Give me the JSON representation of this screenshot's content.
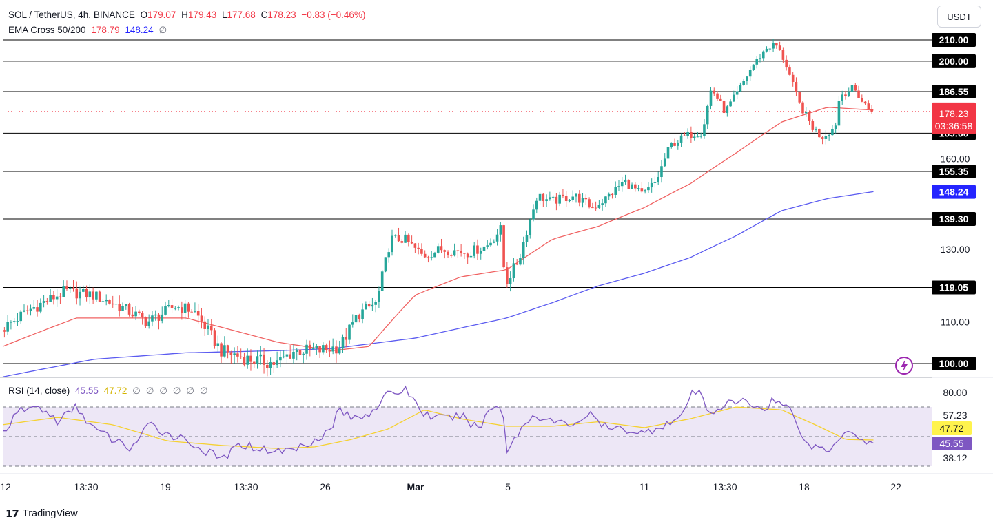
{
  "header": {
    "symbol": "SOL / TetherUS, 4h, BINANCE",
    "ohlc": {
      "o_label": "O",
      "o": "179.07",
      "h_label": "H",
      "h": "179.43",
      "l_label": "L",
      "l": "177.68",
      "c_label": "C",
      "c": "178.23",
      "change": "−0.83 (−0.46%)"
    },
    "ema": {
      "label": "EMA Cross 50/200",
      "ema50": "178.79",
      "ema200": "148.24",
      "extra": "∅"
    },
    "currency_button": "USDT"
  },
  "rsi_header": {
    "label": "RSI (14, close)",
    "rsi": "45.55",
    "ma": "47.72",
    "extras": [
      "∅",
      "∅",
      "∅",
      "∅",
      "∅",
      "∅"
    ]
  },
  "branding": {
    "logo_text": "TradingView"
  },
  "colors": {
    "up": "#26a69a",
    "down": "#ef5350",
    "ema50": "#f06262",
    "ema200": "#5b5bf0",
    "rsi": "#7e57c2",
    "rsi_ma": "#f5d131",
    "level_line": "#000000",
    "price_badge": "#f23645",
    "ema200_badge": "#2424ff",
    "rsi_badge": "#7e57c2",
    "rsi_ma_badge": "#fff34d"
  },
  "chart_data": {
    "type": "candlestick",
    "symbol": "SOL / TetherUS",
    "interval": "4h",
    "exchange": "BINANCE",
    "price_axis_ticks": [
      200.0,
      160.0,
      130.0,
      110.0
    ],
    "horizontal_levels": [
      210.0,
      200.0,
      186.55,
      169.6,
      155.35,
      139.3,
      119.05,
      100.0
    ],
    "last_price": 178.23,
    "countdown": "03:36:58",
    "ema50_value": 178.79,
    "ema200_value": 148.24,
    "x_labels": [
      "12",
      "13:30",
      "19",
      "13:30",
      "26",
      "Mar",
      "5",
      "11",
      "13:30",
      "18",
      "22"
    ],
    "price_path": [
      [
        0,
        108
      ],
      [
        0.03,
        113
      ],
      [
        0.07,
        118
      ],
      [
        0.1,
        117
      ],
      [
        0.13,
        114
      ],
      [
        0.16,
        110
      ],
      [
        0.19,
        114
      ],
      [
        0.21,
        113
      ],
      [
        0.24,
        103
      ],
      [
        0.27,
        101
      ],
      [
        0.3,
        100
      ],
      [
        0.32,
        103
      ],
      [
        0.345,
        103
      ],
      [
        0.37,
        104
      ],
      [
        0.39,
        112
      ],
      [
        0.41,
        115
      ],
      [
        0.425,
        133
      ],
      [
        0.44,
        133
      ],
      [
        0.46,
        128
      ],
      [
        0.48,
        130
      ],
      [
        0.51,
        129
      ],
      [
        0.53,
        131
      ],
      [
        0.545,
        136
      ],
      [
        0.55,
        120
      ],
      [
        0.565,
        127
      ],
      [
        0.585,
        147
      ],
      [
        0.6,
        145
      ],
      [
        0.625,
        147
      ],
      [
        0.645,
        143
      ],
      [
        0.66,
        146
      ],
      [
        0.68,
        152
      ],
      [
        0.7,
        147
      ],
      [
        0.715,
        152
      ],
      [
        0.73,
        165
      ],
      [
        0.75,
        169
      ],
      [
        0.765,
        170
      ],
      [
        0.775,
        188
      ],
      [
        0.79,
        178
      ],
      [
        0.805,
        187
      ],
      [
        0.82,
        198
      ],
      [
        0.835,
        206
      ],
      [
        0.845,
        208
      ],
      [
        0.855,
        200
      ],
      [
        0.87,
        182
      ],
      [
        0.885,
        172
      ],
      [
        0.895,
        168
      ],
      [
        0.91,
        172
      ],
      [
        0.915,
        185
      ],
      [
        0.93,
        188
      ],
      [
        0.94,
        182
      ],
      [
        0.95,
        178.23
      ]
    ],
    "ema50_path": [
      [
        0,
        104
      ],
      [
        0.08,
        111
      ],
      [
        0.2,
        111
      ],
      [
        0.3,
        105
      ],
      [
        0.36,
        103
      ],
      [
        0.4,
        104
      ],
      [
        0.45,
        117
      ],
      [
        0.5,
        122
      ],
      [
        0.55,
        124
      ],
      [
        0.6,
        133
      ],
      [
        0.65,
        137
      ],
      [
        0.7,
        143
      ],
      [
        0.75,
        151
      ],
      [
        0.8,
        162
      ],
      [
        0.85,
        174
      ],
      [
        0.9,
        180
      ],
      [
        0.95,
        178.8
      ]
    ],
    "ema200_path": [
      [
        0,
        97
      ],
      [
        0.1,
        101
      ],
      [
        0.2,
        102.5
      ],
      [
        0.3,
        103
      ],
      [
        0.36,
        103.5
      ],
      [
        0.45,
        106
      ],
      [
        0.5,
        108.5
      ],
      [
        0.55,
        111
      ],
      [
        0.6,
        115
      ],
      [
        0.65,
        119.5
      ],
      [
        0.7,
        123
      ],
      [
        0.75,
        127.5
      ],
      [
        0.8,
        134
      ],
      [
        0.85,
        142
      ],
      [
        0.9,
        146
      ],
      [
        0.95,
        148.3
      ]
    ],
    "rsi": {
      "period": 14,
      "source": "close",
      "current": 45.55,
      "ma_current": 47.72,
      "axis_ticks": [
        80.0,
        57.23,
        38.12
      ],
      "band_upper": 70,
      "band_lower": 30,
      "band_middle": 50,
      "rsi_path": [
        [
          0,
          53
        ],
        [
          0.02,
          68
        ],
        [
          0.04,
          70
        ],
        [
          0.06,
          60
        ],
        [
          0.08,
          70
        ],
        [
          0.1,
          55
        ],
        [
          0.12,
          48
        ],
        [
          0.14,
          42
        ],
        [
          0.16,
          58
        ],
        [
          0.18,
          52
        ],
        [
          0.2,
          48
        ],
        [
          0.22,
          40
        ],
        [
          0.24,
          35
        ],
        [
          0.26,
          45
        ],
        [
          0.28,
          42
        ],
        [
          0.3,
          40
        ],
        [
          0.32,
          42
        ],
        [
          0.34,
          48
        ],
        [
          0.36,
          55
        ],
        [
          0.365,
          70
        ],
        [
          0.38,
          62
        ],
        [
          0.4,
          66
        ],
        [
          0.42,
          78
        ],
        [
          0.44,
          82
        ],
        [
          0.46,
          65
        ],
        [
          0.48,
          62
        ],
        [
          0.5,
          64
        ],
        [
          0.52,
          55
        ],
        [
          0.53,
          68
        ],
        [
          0.545,
          72
        ],
        [
          0.55,
          40
        ],
        [
          0.565,
          55
        ],
        [
          0.58,
          65
        ],
        [
          0.6,
          60
        ],
        [
          0.62,
          58
        ],
        [
          0.64,
          65
        ],
        [
          0.66,
          55
        ],
        [
          0.68,
          55
        ],
        [
          0.7,
          52
        ],
        [
          0.72,
          58
        ],
        [
          0.74,
          62
        ],
        [
          0.75,
          78
        ],
        [
          0.76,
          80
        ],
        [
          0.77,
          66
        ],
        [
          0.79,
          72
        ],
        [
          0.81,
          74
        ],
        [
          0.83,
          68
        ],
        [
          0.84,
          75
        ],
        [
          0.85,
          72
        ],
        [
          0.86,
          68
        ],
        [
          0.87,
          55
        ],
        [
          0.88,
          42
        ],
        [
          0.89,
          45
        ],
        [
          0.9,
          38
        ],
        [
          0.91,
          48
        ],
        [
          0.92,
          55
        ],
        [
          0.93,
          53
        ],
        [
          0.94,
          46
        ],
        [
          0.95,
          45.55
        ]
      ],
      "ma_path": [
        [
          0,
          58
        ],
        [
          0.06,
          63
        ],
        [
          0.12,
          58
        ],
        [
          0.18,
          47
        ],
        [
          0.24,
          44
        ],
        [
          0.3,
          42
        ],
        [
          0.34,
          43
        ],
        [
          0.38,
          48
        ],
        [
          0.42,
          55
        ],
        [
          0.46,
          68
        ],
        [
          0.5,
          62
        ],
        [
          0.55,
          57
        ],
        [
          0.6,
          57
        ],
        [
          0.65,
          60
        ],
        [
          0.7,
          56
        ],
        [
          0.75,
          62
        ],
        [
          0.8,
          70
        ],
        [
          0.85,
          68
        ],
        [
          0.89,
          57
        ],
        [
          0.92,
          48
        ],
        [
          0.95,
          47.7
        ]
      ]
    }
  }
}
